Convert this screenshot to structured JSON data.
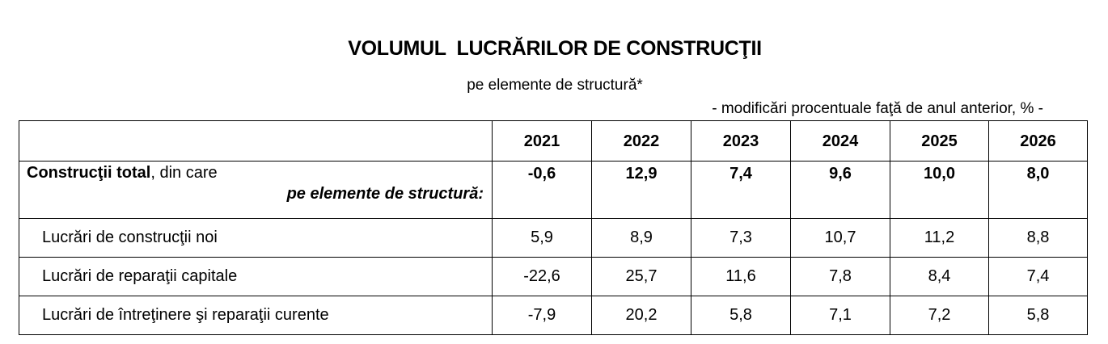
{
  "title": "VOLUMUL  LUCRĂRILOR DE CONSTRUCŢII",
  "subtitle": "pe elemente de structură*",
  "unit_note": "- modificări procentuale faţă de anul anterior, % -",
  "table": {
    "years": [
      "2021",
      "2022",
      "2023",
      "2024",
      "2025",
      "2026"
    ],
    "total": {
      "name_bold": "Construcţii total",
      "name_suffix": ", din care",
      "structure_label": "pe elemente de structură:",
      "values": [
        "-0,6",
        "12,9",
        "7,4",
        "9,6",
        "10,0",
        "8,0"
      ]
    },
    "rows": [
      {
        "label": "Lucrări de construcţii noi",
        "values": [
          "5,9",
          "8,9",
          "7,3",
          "10,7",
          "11,2",
          "8,8"
        ]
      },
      {
        "label": "Lucrări de reparaţii capitale",
        "values": [
          "-22,6",
          "25,7",
          "11,6",
          "7,8",
          "8,4",
          "7,4"
        ]
      },
      {
        "label": "Lucrări de întreţinere şi reparaţii curente",
        "values": [
          "-7,9",
          "20,2",
          "5,8",
          "7,1",
          "7,2",
          "5,8"
        ]
      }
    ]
  }
}
